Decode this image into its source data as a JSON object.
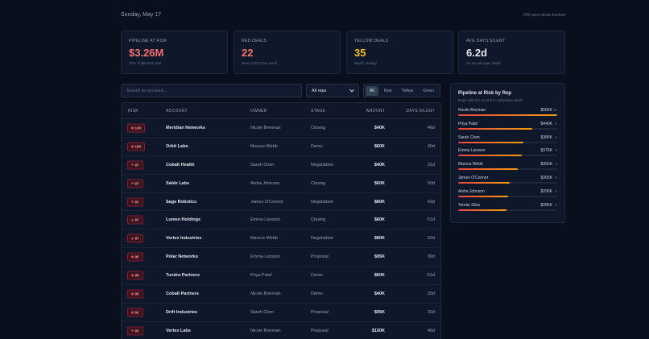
{
  "header": {
    "date": "Sunday, May 17",
    "tracked": "200 open deals tracked"
  },
  "kpis": [
    {
      "label": "PIPELINE AT RISK",
      "value": "$3.26M",
      "sub": "37% of $8.87M total",
      "color": "#f87171"
    },
    {
      "label": "RED DEALS",
      "value": "22",
      "sub": "Need action this week",
      "color": "#f87171"
    },
    {
      "label": "YELLOW DEALS",
      "value": "35",
      "sub": "Watch closely",
      "color": "#fbbf24"
    },
    {
      "label": "AVG DAYS SILENT",
      "value": "6.2d",
      "sub": "Across all open deals",
      "color": "#e2e8f0"
    }
  ],
  "filters": {
    "search_placeholder": "Search by account...",
    "rep_select": "All reps",
    "segments": [
      "All",
      "Red",
      "Yellow",
      "Green"
    ],
    "active_segment": "All"
  },
  "table": {
    "columns": [
      "RISK",
      "ACCOUNT",
      "OWNER",
      "STAGE",
      "AMOUNT",
      "DAYS SILENT"
    ],
    "rows": [
      {
        "risk": "100",
        "account": "Meridian Networks",
        "owner": "Nicole Brennan",
        "stage": "Closing",
        "amount": "$40K",
        "days": "46d"
      },
      {
        "risk": "100",
        "account": "Orbit Labs",
        "owner": "Marcus Webb",
        "stage": "Demo",
        "amount": "$60K",
        "days": "40d"
      },
      {
        "risk": "97",
        "account": "Cobalt Health",
        "owner": "Sarah Chen",
        "stage": "Negotiation",
        "amount": "$40K",
        "days": "31d"
      },
      {
        "risk": "97",
        "account": "Sable Labs",
        "owner": "Aisha Johnson",
        "stage": "Closing",
        "amount": "$60K",
        "days": "50d"
      },
      {
        "risk": "97",
        "account": "Sage Robotics",
        "owner": "James O'Connor",
        "stage": "Negotiation",
        "amount": "$80K",
        "days": "43d"
      },
      {
        "risk": "97",
        "account": "Lumen Holdings",
        "owner": "Emma Larsson",
        "stage": "Closing",
        "amount": "$60K",
        "days": "51d"
      },
      {
        "risk": "97",
        "account": "Vertex Industries",
        "owner": "Marcus Webb",
        "stage": "Negotiation",
        "amount": "$80K",
        "days": "52d"
      },
      {
        "risk": "95",
        "account": "Polar Networks",
        "owner": "Emma Larsson",
        "stage": "Proposal",
        "amount": "$95K",
        "days": "39d"
      },
      {
        "risk": "95",
        "account": "Tundra Partners",
        "owner": "Priya Patel",
        "stage": "Demo",
        "amount": "$60K",
        "days": "61d"
      },
      {
        "risk": "95",
        "account": "Cobalt Partners",
        "owner": "Nicole Brennan",
        "stage": "Demo",
        "amount": "$40K",
        "days": "33d"
      },
      {
        "risk": "92",
        "account": "Drift Industries",
        "owner": "Sarah Chen",
        "stage": "Proposal",
        "amount": "$95K",
        "days": "32d"
      },
      {
        "risk": "92",
        "account": "Vertex Labs",
        "owner": "Nicole Brennan",
        "stage": "Proposal",
        "amount": "$150K",
        "days": "46d"
      }
    ]
  },
  "reps": {
    "title": "Pipeline at Risk by Rep",
    "subtitle": "Reps with the most $ in red/yellow deals",
    "items": [
      {
        "name": "Nicole Brennan",
        "value": "$585K",
        "count": "10",
        "fraction": 1.0
      },
      {
        "name": "Priya Patel",
        "value": "$440K",
        "count": "6",
        "fraction": 0.75
      },
      {
        "name": "Sarah Chen",
        "value": "$385K",
        "count": "6",
        "fraction": 0.66
      },
      {
        "name": "Emma Larsson",
        "value": "$375K",
        "count": "6",
        "fraction": 0.64
      },
      {
        "name": "Marcus Webb",
        "value": "$350K",
        "count": "4",
        "fraction": 0.6
      },
      {
        "name": "James O'Connor",
        "value": "$305K",
        "count": "5",
        "fraction": 0.52
      },
      {
        "name": "Aisha Johnson",
        "value": "$290K",
        "count": "6",
        "fraction": 0.5
      },
      {
        "name": "Tomás Silva",
        "value": "$285K",
        "count": "5",
        "fraction": 0.49
      }
    ]
  }
}
